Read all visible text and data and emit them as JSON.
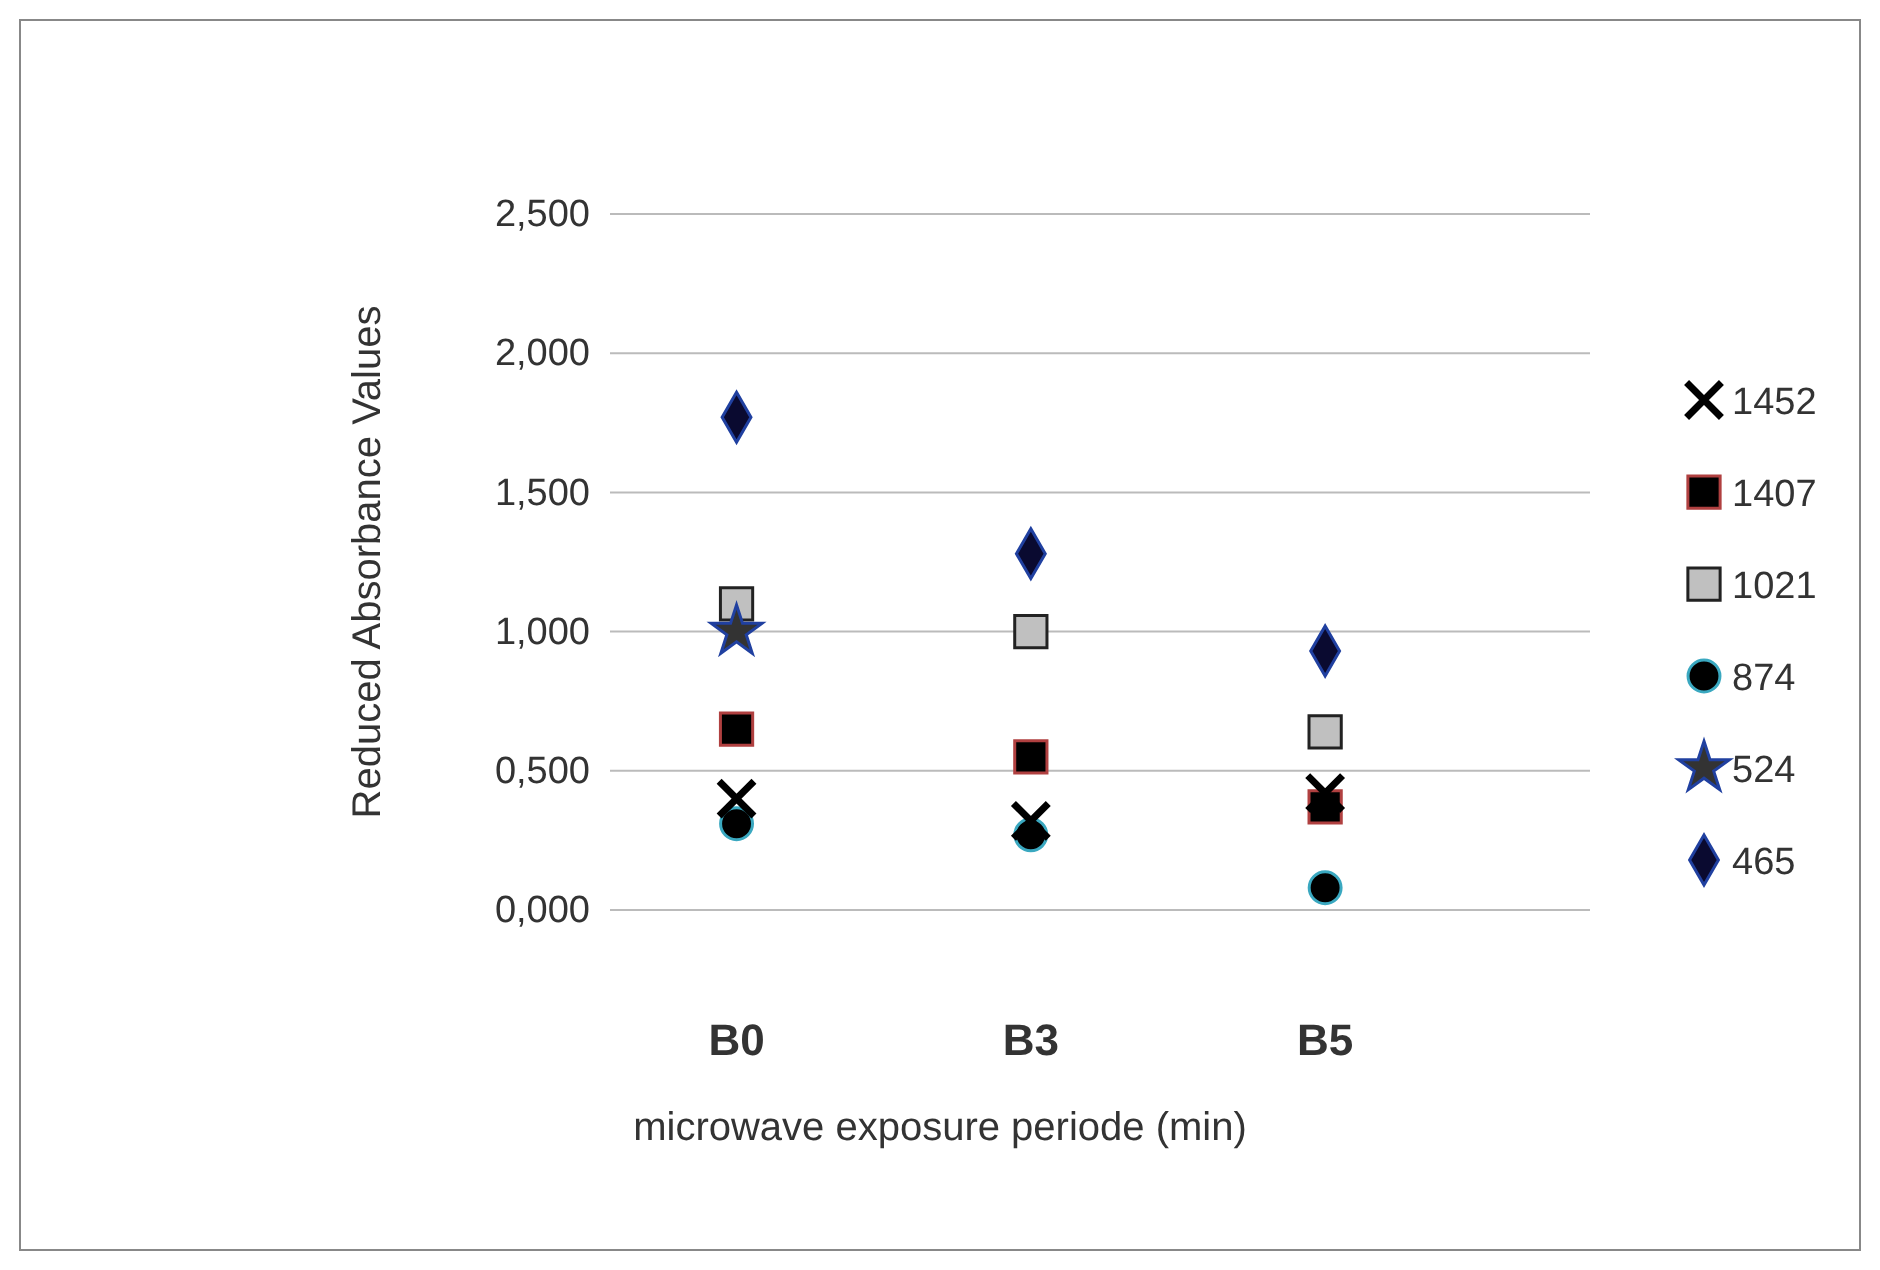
{
  "chart_data": {
    "type": "scatter",
    "xlabel": "microwave exposure periode  (min)",
    "ylabel": "Reduced  Absorbance Values",
    "categories": [
      "B0",
      "B3",
      "B5"
    ],
    "series": [
      {
        "name": "1452",
        "color": "#000000",
        "marker": "cross",
        "values": [
          0.4,
          0.32,
          0.42
        ]
      },
      {
        "name": "1407",
        "color": "#000000",
        "marker": "square",
        "values": [
          0.65,
          0.55,
          0.37
        ]
      },
      {
        "name": "1021",
        "color": "#c0c0c0",
        "marker": "square",
        "values": [
          1.1,
          1.0,
          0.64
        ]
      },
      {
        "name": "874",
        "color": "#000000",
        "marker": "circle",
        "values": [
          0.31,
          0.27,
          0.08
        ]
      },
      {
        "name": "524",
        "color": "#333333",
        "marker": "star",
        "values": [
          1.0,
          null,
          null
        ]
      },
      {
        "name": "465",
        "color": "#0a0a30",
        "marker": "diamond",
        "values": [
          1.77,
          1.28,
          0.93
        ]
      }
    ],
    "ylim": [
      0,
      2.5
    ],
    "yticks": [
      {
        "value": 0,
        "label": "0,000"
      },
      {
        "value": 0.5,
        "label": "0,500"
      },
      {
        "value": 1,
        "label": "1,000"
      },
      {
        "value": 1.5,
        "label": "1,500"
      },
      {
        "value": 2,
        "label": "2,000"
      },
      {
        "value": 2.5,
        "label": "2,500"
      }
    ],
    "grid": "y",
    "legend": "right"
  }
}
